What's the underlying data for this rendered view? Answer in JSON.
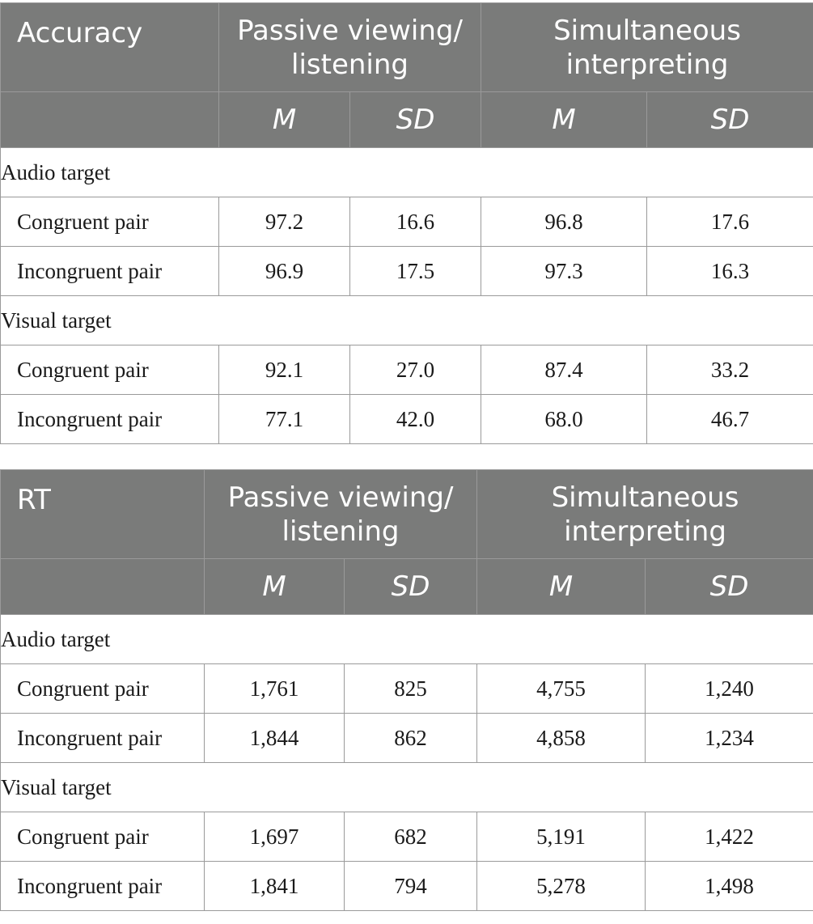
{
  "tables": [
    {
      "corner": "Accuracy",
      "conditions": [
        {
          "line1": "Passive viewing/",
          "line2": "listening"
        },
        {
          "line1": "Simultaneous",
          "line2": "interpreting"
        }
      ],
      "subheaders": [
        "M",
        "SD",
        "M",
        "SD"
      ],
      "groups": [
        {
          "label": "Audio target",
          "rows": [
            {
              "label": "Congruent pair",
              "values": [
                "97.2",
                "16.6",
                "96.8",
                "17.6"
              ]
            },
            {
              "label": "Incongruent pair",
              "values": [
                "96.9",
                "17.5",
                "97.3",
                "16.3"
              ]
            }
          ]
        },
        {
          "label": "Visual target",
          "rows": [
            {
              "label": "Congruent pair",
              "values": [
                "92.1",
                "27.0",
                "87.4",
                "33.2"
              ]
            },
            {
              "label": "Incongruent pair",
              "values": [
                "77.1",
                "42.0",
                "68.0",
                "46.7"
              ]
            }
          ]
        }
      ]
    },
    {
      "corner": "RT",
      "conditions": [
        {
          "line1": "Passive viewing/",
          "line2": "listening"
        },
        {
          "line1": "Simultaneous",
          "line2": "interpreting"
        }
      ],
      "subheaders": [
        "M",
        "SD",
        "M",
        "SD"
      ],
      "groups": [
        {
          "label": "Audio target",
          "rows": [
            {
              "label": "Congruent pair",
              "values": [
                "1,761",
                "825",
                "4,755",
                "1,240"
              ]
            },
            {
              "label": "Incongruent pair",
              "values": [
                "1,844",
                "862",
                "4,858",
                "1,234"
              ]
            }
          ]
        },
        {
          "label": "Visual target",
          "rows": [
            {
              "label": "Congruent pair",
              "values": [
                "1,697",
                "682",
                "5,191",
                "1,422"
              ]
            },
            {
              "label": "Incongruent pair",
              "values": [
                "1,841",
                "794",
                "5,278",
                "1,498"
              ]
            }
          ]
        }
      ]
    }
  ]
}
